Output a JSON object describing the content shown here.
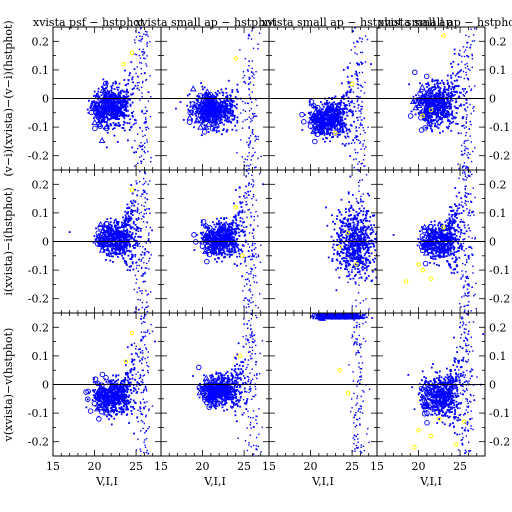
{
  "chart_data": {
    "type": "scatter",
    "layout": "3x4 grid of panels, shared axes",
    "column_titles": [
      "xvista psf − hstphot",
      "xvista small ap − hstphot",
      "xvista small ap − hstphot small ap",
      "xvista small ap − hstphot pl"
    ],
    "row_ylabels": [
      "(v−i)(xvista)−(v−i)(hstphot)",
      "i(xvista)−i(hstphot)",
      "v(xvista)−v(hstphot)"
    ],
    "xlabel": "V,I,I",
    "xlim": [
      15,
      28
    ],
    "ylim": [
      -0.25,
      0.25
    ],
    "x_ticks": [
      15,
      20,
      25
    ],
    "y_ticks": [
      -0.2,
      -0.1,
      0,
      0.1,
      0.2
    ],
    "zero_line": 0,
    "series_colors": {
      "main": "#0000ff",
      "secondary": "#ffff00"
    },
    "panels": [
      {
        "row": 0,
        "col": 0,
        "center_x": 22.2,
        "center_y": -0.03,
        "spread_y": 0.035,
        "tail": "up",
        "secondary_points": [
          [
            23.5,
            0.12
          ],
          [
            24.5,
            0.16
          ]
        ]
      },
      {
        "row": 0,
        "col": 1,
        "center_x": 21.5,
        "center_y": -0.04,
        "spread_y": 0.03,
        "tail": "up",
        "secondary_points": [
          [
            24.0,
            0.14
          ]
        ]
      },
      {
        "row": 0,
        "col": 2,
        "center_x": 22.5,
        "center_y": -0.07,
        "spread_y": 0.03,
        "tail": "up",
        "secondary_points": [
          [
            23.0,
            -0.12
          ],
          [
            25.0,
            0.05
          ]
        ]
      },
      {
        "row": 0,
        "col": 3,
        "center_x": 22.5,
        "center_y": -0.02,
        "spread_y": 0.035,
        "tail": "up",
        "secondary_points": [
          [
            20.5,
            -0.06
          ],
          [
            23.0,
            0.22
          ],
          [
            21.5,
            -0.04
          ]
        ]
      },
      {
        "row": 1,
        "col": 0,
        "center_x": 23.0,
        "center_y": 0.01,
        "spread_y": 0.03,
        "tail": "up",
        "secondary_points": [
          [
            24.5,
            0.18
          ]
        ]
      },
      {
        "row": 1,
        "col": 1,
        "center_x": 22.5,
        "center_y": 0.01,
        "spread_y": 0.03,
        "tail": "up",
        "secondary_points": [
          [
            24.0,
            0.12
          ],
          [
            24.8,
            -0.05
          ]
        ]
      },
      {
        "row": 1,
        "col": 2,
        "center_x": 25.5,
        "center_y": 0.0,
        "spread_y": 0.06,
        "tail": "none",
        "secondary_points": [
          [
            23.5,
            -0.02
          ],
          [
            24.5,
            0.03
          ],
          [
            25.5,
            -0.08
          ]
        ]
      },
      {
        "row": 1,
        "col": 3,
        "center_x": 23.0,
        "center_y": 0.0,
        "spread_y": 0.03,
        "tail": "up",
        "secondary_points": [
          [
            20.0,
            -0.08
          ],
          [
            20.5,
            -0.1
          ],
          [
            21.5,
            -0.13
          ],
          [
            18.5,
            -0.14
          ],
          [
            23.0,
            0.05
          ]
        ]
      },
      {
        "row": 2,
        "col": 0,
        "center_x": 22.5,
        "center_y": -0.04,
        "spread_y": 0.03,
        "tail": "up",
        "secondary_points": [
          [
            24.5,
            0.18
          ],
          [
            23.8,
            0.08
          ]
        ]
      },
      {
        "row": 2,
        "col": 1,
        "center_x": 22.5,
        "center_y": -0.02,
        "spread_y": 0.025,
        "tail": "up",
        "secondary_points": [
          [
            24.5,
            0.1
          ]
        ]
      },
      {
        "row": 2,
        "col": 2,
        "center_x": 23.5,
        "center_y": 0.23,
        "spread_y": 0.01,
        "tail": "none",
        "secondary_points": [
          [
            23.5,
            0.05
          ],
          [
            24.5,
            -0.03
          ]
        ]
      },
      {
        "row": 2,
        "col": 3,
        "center_x": 23.0,
        "center_y": -0.04,
        "spread_y": 0.035,
        "tail": "up",
        "secondary_points": [
          [
            20.0,
            -0.16
          ],
          [
            21.5,
            -0.18
          ],
          [
            25.5,
            -0.13
          ],
          [
            24.5,
            -0.21
          ],
          [
            22.5,
            -0.12
          ],
          [
            19.5,
            -0.22
          ]
        ]
      }
    ]
  }
}
